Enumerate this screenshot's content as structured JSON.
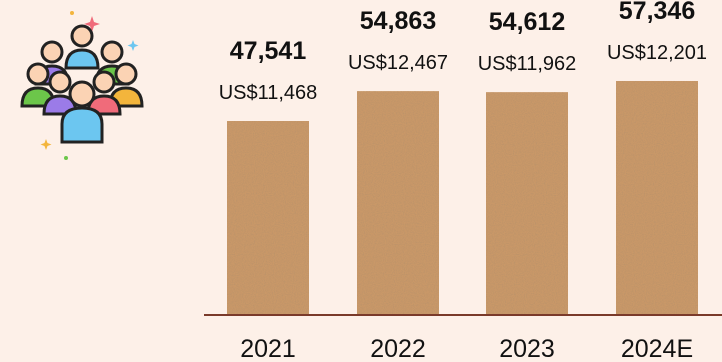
{
  "icon": "people-group-icon",
  "chart_data": {
    "type": "bar",
    "categories": [
      "2021",
      "2022",
      "2023",
      "2024E"
    ],
    "values": [
      47541,
      54863,
      54612,
      57346
    ],
    "secondary_labels": [
      "US$11,468",
      "US$12,467",
      "US$11,962",
      "US$12,201"
    ],
    "value_labels": [
      "47,541",
      "54,863",
      "54,612",
      "57,346"
    ],
    "ylim": [
      0,
      62000
    ],
    "bar_color": "#c99868",
    "axis_color": "#7a3a2a",
    "grid": false,
    "legend": "none"
  }
}
